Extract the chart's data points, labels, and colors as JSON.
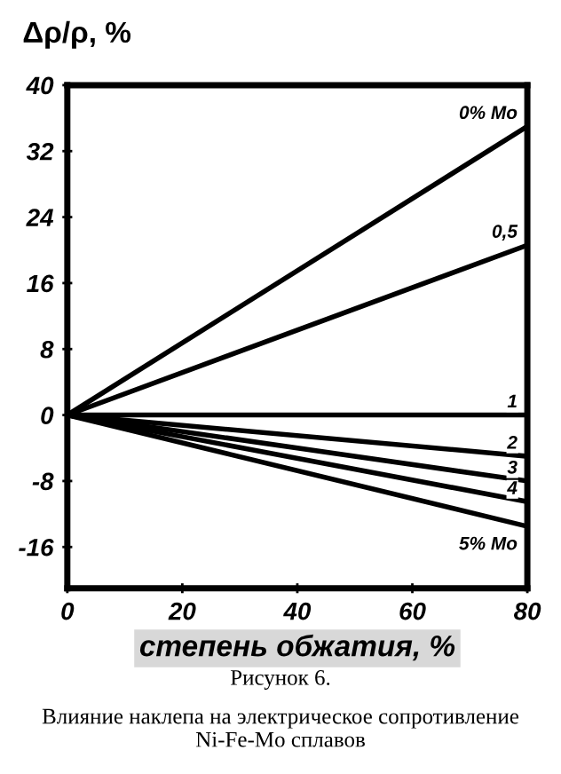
{
  "chart_data": {
    "type": "line",
    "ylabel": "Δρ/ρ, %",
    "xlabel": "степень обжатия, %",
    "annotations": [
      "Рисунок 6.",
      "Влияние наклепа на электрическое сопротивление Ni-Fe-Mo сплавов"
    ],
    "x": [
      0,
      80
    ],
    "series": [
      {
        "name": "0% Mo",
        "color": "#000000",
        "values": [
          0,
          35
        ]
      },
      {
        "name": "0,5",
        "color": "#000000",
        "values": [
          0,
          20.6
        ]
      },
      {
        "name": "1",
        "color": "#000000",
        "values": [
          0,
          0
        ]
      },
      {
        "name": "2",
        "color": "#000000",
        "values": [
          0,
          -5
        ]
      },
      {
        "name": "3",
        "color": "#000000",
        "values": [
          0,
          -8
        ]
      },
      {
        "name": "4",
        "color": "#000000",
        "values": [
          0,
          -10.5
        ]
      },
      {
        "name": "5% Mo",
        "color": "#000000",
        "values": [
          0,
          -13.5
        ]
      }
    ],
    "xlim": [
      0,
      80
    ],
    "ylim": [
      -21,
      40
    ],
    "xticks": [
      0,
      20,
      40,
      60,
      80
    ],
    "yticks": [
      40,
      32,
      24,
      16,
      8,
      0,
      -8,
      -16
    ],
    "grid": false,
    "legend": false,
    "marker": "none",
    "line_style": "solid"
  }
}
